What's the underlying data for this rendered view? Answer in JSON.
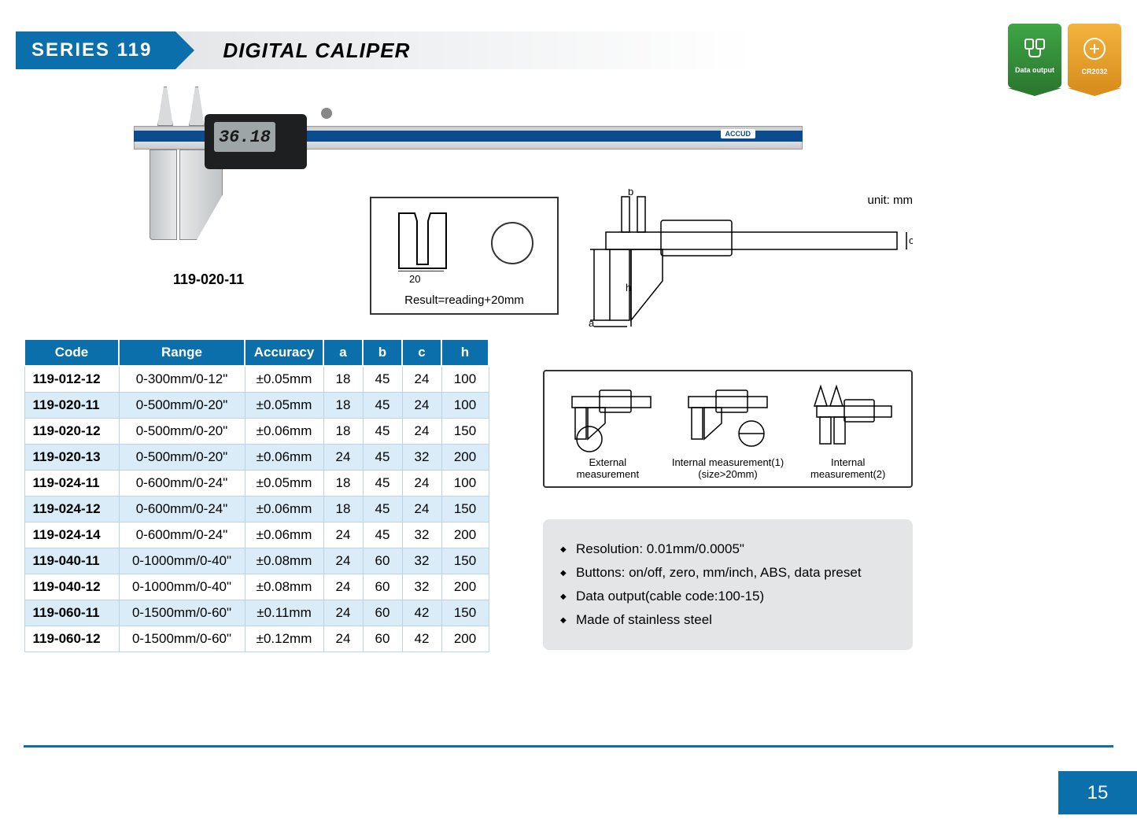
{
  "header": {
    "series": "SERIES 119",
    "title": "DIGITAL CALIPER"
  },
  "badges": {
    "data_output": "Data output",
    "battery": "CR2032"
  },
  "product": {
    "lcd_reading": "36.18",
    "caption": "119-020-11",
    "brand": "ACCUD"
  },
  "result_diagram": {
    "dimension": "20",
    "caption": "Result=reading+20mm"
  },
  "schematic": {
    "unit_label": "unit: mm",
    "labels": {
      "a": "a",
      "b": "b",
      "c": "c",
      "h": "h"
    }
  },
  "spec_table": {
    "columns": [
      "Code",
      "Range",
      "Accuracy",
      "a",
      "b",
      "c",
      "h"
    ],
    "rows": [
      [
        "119-012-12",
        "0-300mm/0-12\"",
        "±0.05mm",
        "18",
        "45",
        "24",
        "100"
      ],
      [
        "119-020-11",
        "0-500mm/0-20\"",
        "±0.05mm",
        "18",
        "45",
        "24",
        "100"
      ],
      [
        "119-020-12",
        "0-500mm/0-20\"",
        "±0.06mm",
        "18",
        "45",
        "24",
        "150"
      ],
      [
        "119-020-13",
        "0-500mm/0-20\"",
        "±0.06mm",
        "24",
        "45",
        "32",
        "200"
      ],
      [
        "119-024-11",
        "0-600mm/0-24\"",
        "±0.05mm",
        "18",
        "45",
        "24",
        "100"
      ],
      [
        "119-024-12",
        "0-600mm/0-24\"",
        "±0.06mm",
        "18",
        "45",
        "24",
        "150"
      ],
      [
        "119-024-14",
        "0-600mm/0-24\"",
        "±0.06mm",
        "24",
        "45",
        "32",
        "200"
      ],
      [
        "119-040-11",
        "0-1000mm/0-40\"",
        "±0.08mm",
        "24",
        "60",
        "32",
        "150"
      ],
      [
        "119-040-12",
        "0-1000mm/0-40\"",
        "±0.08mm",
        "24",
        "60",
        "32",
        "200"
      ],
      [
        "119-060-11",
        "0-1500mm/0-60\"",
        "±0.11mm",
        "24",
        "60",
        "42",
        "150"
      ],
      [
        "119-060-12",
        "0-1500mm/0-60\"",
        "±0.12mm",
        "24",
        "60",
        "42",
        "200"
      ]
    ],
    "header_bg": "#0b6fab",
    "row_alt_bg": "#d9ecf7",
    "border_color": "#bcd3e6"
  },
  "measurement_types": {
    "items": [
      {
        "label_l1": "External",
        "label_l2": "measurement"
      },
      {
        "label_l1": "Internal measurement(1)",
        "label_l2": "(size>20mm)"
      },
      {
        "label_l1": "Internal",
        "label_l2": "measurement(2)"
      }
    ]
  },
  "features": {
    "items": [
      "Resolution: 0.01mm/0.0005\"",
      "Buttons: on/off, zero, mm/inch,  ABS, data preset",
      "Data output(cable code:100-15)",
      "Made of stainless steel"
    ],
    "bg": "#e3e5e7"
  },
  "page_number": "15",
  "colors": {
    "brand_blue": "#0b6fab",
    "dark_blue": "#0b4b8f",
    "badge_green": "#3fa545",
    "badge_orange": "#f4b33f",
    "steel": "#d8dadc"
  }
}
